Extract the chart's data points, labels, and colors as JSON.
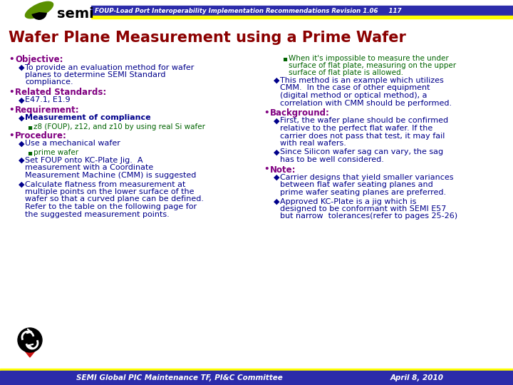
{
  "bg_color": "#ffffff",
  "header_bar_blue": "#2c2caa",
  "header_bar_yellow": "#ffff00",
  "header_text": "FOUP-Load Port Interoperability Implementation Recommendations Revision 1.06     117",
  "header_text_color": "#800080",
  "title": "Wafer Plane Measurement using a Prime Wafer",
  "title_color": "#8B0000",
  "footer_text_left": "SEMI Global PIC Maintenance TF, PI&C Committee",
  "footer_text_right": "April 8, 2010",
  "footer_text_color": "#4B0082",
  "left_col": [
    {
      "level": 0,
      "bullet": "•",
      "text": "Objective:",
      "bold": true,
      "color": "#800080"
    },
    {
      "level": 1,
      "bullet": "◆",
      "text": "To provide an evaluation method for wafer\nplanes to determine SEMI Standard\ncompliance.",
      "bold": false,
      "color": "#00008B"
    },
    {
      "level": 0,
      "bullet": "•",
      "text": "Related Standards:",
      "bold": true,
      "color": "#800080"
    },
    {
      "level": 1,
      "bullet": "◆",
      "text": "E47.1, E1.9",
      "bold": false,
      "color": "#00008B"
    },
    {
      "level": 0,
      "bullet": "•",
      "text": "Requirement:",
      "bold": true,
      "color": "#800080"
    },
    {
      "level": 1,
      "bullet": "◆",
      "text": "Measurement of compliance",
      "bold": true,
      "color": "#00008B"
    },
    {
      "level": 2,
      "bullet": "▪",
      "text": "z8 (FOUP), z12, and z10 by using real Si wafer",
      "bold": false,
      "color": "#006400"
    },
    {
      "level": 0,
      "bullet": "•",
      "text": "Procedure:",
      "bold": true,
      "color": "#800080"
    },
    {
      "level": 1,
      "bullet": "◆",
      "text": "Use a mechanical wafer",
      "bold": false,
      "color": "#00008B"
    },
    {
      "level": 2,
      "bullet": "▪",
      "text": "prime wafer",
      "bold": false,
      "color": "#006400"
    },
    {
      "level": 1,
      "bullet": "◆",
      "text": "Set FOUP onto KC-Plate Jig.  A\nmeasurement with a Coordinate\nMeasurement Machine (CMM) is suggested",
      "bold": false,
      "color": "#00008B"
    },
    {
      "level": 1,
      "bullet": "◆",
      "text": "Calculate flatness from measurement at\nmultiple points on the lower surface of the\nwafer so that a curved plane can be defined.\nRefer to the table on the following page for\nthe suggested measurement points.",
      "bold": false,
      "color": "#00008B"
    }
  ],
  "right_col": [
    {
      "level": 2,
      "bullet": "▪",
      "text": "When it's impossible to measure the under\nsurface of flat plate, measuring on the upper\nsurface of flat plate is allowed.",
      "bold": false,
      "color": "#006400"
    },
    {
      "level": 1,
      "bullet": "◆",
      "text": "This method is an example which utilizes\nCMM.  In the case of other equipment\n(digital method or optical method), a\ncorrelation with CMM should be performed.",
      "bold": false,
      "color": "#00008B"
    },
    {
      "level": 0,
      "bullet": "•",
      "text": "Background:",
      "bold": true,
      "color": "#800080"
    },
    {
      "level": 1,
      "bullet": "◆",
      "text": "First, the wafer plane should be confirmed\nrelative to the perfect flat wafer. If the\ncarrier does not pass that test, it may fail\nwith real wafers.",
      "bold": false,
      "color": "#00008B"
    },
    {
      "level": 1,
      "bullet": "◆",
      "text": "Since Silicon wafer sag can vary, the sag\nhas to be well considered.",
      "bold": false,
      "color": "#00008B"
    },
    {
      "level": 0,
      "bullet": "•",
      "text": "Note:",
      "bold": true,
      "color": "#800080"
    },
    {
      "level": 1,
      "bullet": "◆",
      "text": "Carrier designs that yield smaller variances\nbetween flat wafer seating planes and\nprime wafer seating planes are preferred.",
      "bold": false,
      "color": "#00008B"
    },
    {
      "level": 1,
      "bullet": "◆",
      "text": "Approved KC-Plate is a jig which is\ndesigned to be conformant with SEMI E57\nbut narrow  tolerances(refer to pages 25-26)",
      "bold": false,
      "color": "#00008B"
    }
  ]
}
